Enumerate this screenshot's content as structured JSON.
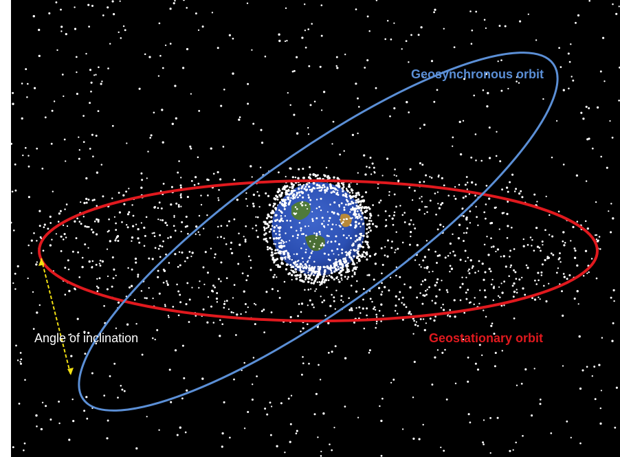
{
  "labels": {
    "geosynchronous": "Geosynchronous orbit",
    "geostationary": "Geostationary orbit",
    "inclination": "Angle of inclination"
  },
  "colors": {
    "background": "#000000",
    "geosynchronous": "#5b8fd6",
    "geostationary": "#e0191e",
    "inclination": "#f2e012",
    "inclination_text": "#ffffff",
    "debris": "#ffffff",
    "earth_ocean": "#2b4fb3",
    "earth_land": "#4f7a3a"
  },
  "icons": {
    "earth": "earth-globe-icon",
    "debris": "debris-dot-icon",
    "inclination_arrow": "double-arrow-icon"
  }
}
